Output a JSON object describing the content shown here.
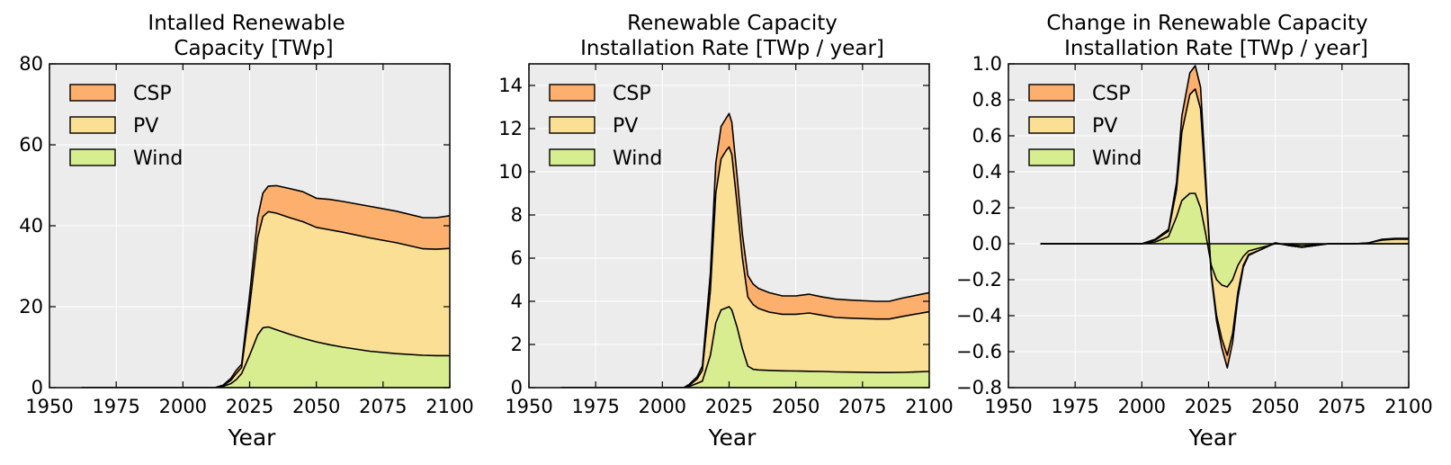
{
  "colors": {
    "background": "#ececec",
    "grid": "#ffffff",
    "CSP": "#fdb06d",
    "PV": "#fbdf94",
    "Wind": "#d8ec90",
    "line": "#000000"
  },
  "chart_data": [
    {
      "type": "area",
      "stacked": true,
      "title_line1": "Intalled Renewable",
      "title_line2": "Capacity [TWp]",
      "xlabel": "Year",
      "ylabel": "",
      "xlim": [
        1950,
        2100
      ],
      "ylim": [
        0,
        80
      ],
      "xticks": [
        1950,
        1975,
        2000,
        2025,
        2050,
        2075,
        2100
      ],
      "xtick_labels": [
        "1950",
        "1975",
        "2000",
        "2025",
        "2050",
        "2075",
        "2100"
      ],
      "yticks": [
        0,
        20,
        40,
        60,
        80
      ],
      "ytick_labels": [
        "0",
        "20",
        "40",
        "60",
        "80"
      ],
      "grid": true,
      "legend_position": "top-left",
      "legend": [
        "CSP",
        "PV",
        "Wind"
      ],
      "x": [
        1962,
        2000,
        2012,
        2015,
        2018,
        2020,
        2022,
        2025,
        2028,
        2030,
        2032,
        2035,
        2040,
        2045,
        2050,
        2055,
        2060,
        2070,
        2080,
        2090,
        2095,
        2100
      ],
      "series": [
        {
          "name": "Wind",
          "values": [
            0,
            0,
            0,
            0.3,
            1.0,
            2.0,
            3.5,
            8,
            13,
            14.8,
            15,
            14.3,
            13.2,
            12.2,
            11.3,
            10.6,
            10,
            9,
            8.4,
            8,
            7.9,
            7.9
          ]
        },
        {
          "name": "PV",
          "values": [
            0,
            0,
            0,
            0.2,
            0.8,
            1.5,
            1.5,
            12,
            24,
            27.5,
            28.5,
            28.8,
            28.8,
            28.8,
            28.3,
            28.4,
            28.4,
            28.0,
            27.4,
            26.3,
            26.3,
            26.5
          ]
        },
        {
          "name": "CSP",
          "values": [
            0,
            0,
            0,
            0.1,
            0.5,
            0.8,
            0.8,
            3,
            5,
            5.8,
            6.3,
            6.8,
            7.2,
            7.4,
            7.2,
            7.5,
            7.6,
            7.8,
            7.8,
            7.7,
            7.8,
            8.1
          ]
        }
      ]
    },
    {
      "type": "area",
      "stacked": true,
      "title_line1": "Renewable Capacity",
      "title_line2": "Installation Rate [TWp / year]",
      "xlabel": "Year",
      "ylabel": "",
      "xlim": [
        1950,
        2100
      ],
      "ylim": [
        0,
        15
      ],
      "xticks": [
        1950,
        1975,
        2000,
        2025,
        2050,
        2075,
        2100
      ],
      "xtick_labels": [
        "1950",
        "1975",
        "2000",
        "2025",
        "2050",
        "2075",
        "2100"
      ],
      "yticks": [
        0,
        2,
        4,
        6,
        8,
        10,
        12,
        14
      ],
      "ytick_labels": [
        "0",
        "2",
        "4",
        "6",
        "8",
        "10",
        "12",
        "14"
      ],
      "grid": true,
      "legend_position": "top-left",
      "legend": [
        "CSP",
        "PV",
        "Wind"
      ],
      "x": [
        1962,
        2005,
        2008,
        2010,
        2013,
        2015,
        2018,
        2020,
        2022,
        2024,
        2025,
        2026,
        2028,
        2030,
        2032,
        2034,
        2036,
        2040,
        2045,
        2050,
        2055,
        2060,
        2065,
        2070,
        2080,
        2085,
        2090,
        2100
      ],
      "series": [
        {
          "name": "Wind",
          "values": [
            0,
            0,
            0,
            0.05,
            0.2,
            0.3,
            1.5,
            3.0,
            3.6,
            3.7,
            3.75,
            3.6,
            2.8,
            1.8,
            1.0,
            0.85,
            0.82,
            0.8,
            0.78,
            0.77,
            0.76,
            0.75,
            0.73,
            0.72,
            0.7,
            0.7,
            0.71,
            0.75
          ]
        },
        {
          "name": "PV",
          "values": [
            0,
            0,
            0,
            0.05,
            0.2,
            0.5,
            3.0,
            6.0,
            7.0,
            7.3,
            7.4,
            7.2,
            5.7,
            4.2,
            3.2,
            3.0,
            2.85,
            2.7,
            2.62,
            2.63,
            2.7,
            2.6,
            2.52,
            2.5,
            2.48,
            2.48,
            2.59,
            2.77
          ]
        },
        {
          "name": "CSP",
          "values": [
            0,
            0,
            0,
            0.05,
            0.1,
            0.2,
            0.8,
            1.4,
            1.5,
            1.5,
            1.55,
            1.5,
            1.3,
            1.1,
            1.0,
            0.95,
            0.93,
            0.9,
            0.85,
            0.85,
            0.87,
            0.85,
            0.85,
            0.84,
            0.82,
            0.82,
            0.85,
            0.88
          ]
        }
      ]
    },
    {
      "type": "area",
      "stacked": true,
      "title_line1": "Change in Renewable Capacity",
      "title_line2": "Installation Rate [TWp / year]",
      "xlabel": "Year",
      "ylabel": "",
      "xlim": [
        1950,
        2100
      ],
      "ylim": [
        -0.8,
        1.0
      ],
      "xticks": [
        1950,
        1975,
        2000,
        2025,
        2050,
        2075,
        2100
      ],
      "xtick_labels": [
        "1950",
        "1975",
        "2000",
        "2025",
        "2050",
        "2075",
        "2100"
      ],
      "yticks": [
        -0.8,
        -0.6,
        -0.4,
        -0.2,
        0.0,
        0.2,
        0.4,
        0.6,
        0.8,
        1.0
      ],
      "ytick_labels": [
        "−0.8",
        "−0.6",
        "−0.4",
        "−0.2",
        "0.0",
        "0.2",
        "0.4",
        "0.6",
        "0.8",
        "1.0"
      ],
      "grid": true,
      "legend_position": "top-left",
      "legend": [
        "CSP",
        "PV",
        "Wind"
      ],
      "x": [
        1962,
        2000,
        2005,
        2010,
        2013,
        2015,
        2018,
        2020,
        2022,
        2024,
        2026,
        2028,
        2030,
        2032,
        2034,
        2036,
        2038,
        2040,
        2045,
        2050,
        2055,
        2060,
        2065,
        2070,
        2080,
        2085,
        2090,
        2095,
        2100
      ],
      "series": [
        {
          "name": "Wind",
          "values": [
            0,
            0,
            0.01,
            0.04,
            0.15,
            0.24,
            0.28,
            0.28,
            0.2,
            0.05,
            -0.12,
            -0.2,
            -0.23,
            -0.24,
            -0.2,
            -0.12,
            -0.07,
            -0.04,
            -0.02,
            0,
            -0.005,
            -0.01,
            -0.005,
            0,
            0,
            0,
            0,
            0,
            0
          ]
        },
        {
          "name": "PV",
          "values": [
            0,
            0,
            0.01,
            0.03,
            0.15,
            0.38,
            0.55,
            0.58,
            0.55,
            0.25,
            -0.05,
            -0.2,
            -0.3,
            -0.38,
            -0.3,
            -0.15,
            -0.05,
            -0.02,
            -0.01,
            0.005,
            -0.005,
            -0.01,
            -0.005,
            0,
            0,
            0.005,
            0.02,
            0.025,
            0.025
          ]
        },
        {
          "name": "CSP",
          "values": [
            0,
            0,
            0.005,
            0.01,
            0.04,
            0.09,
            0.12,
            0.13,
            0.12,
            0.05,
            -0.01,
            -0.03,
            -0.05,
            -0.07,
            -0.05,
            -0.03,
            -0.01,
            -0.005,
            0,
            0,
            0,
            0,
            0,
            0,
            0,
            0,
            0.005,
            0.005,
            0.005
          ]
        }
      ]
    }
  ]
}
